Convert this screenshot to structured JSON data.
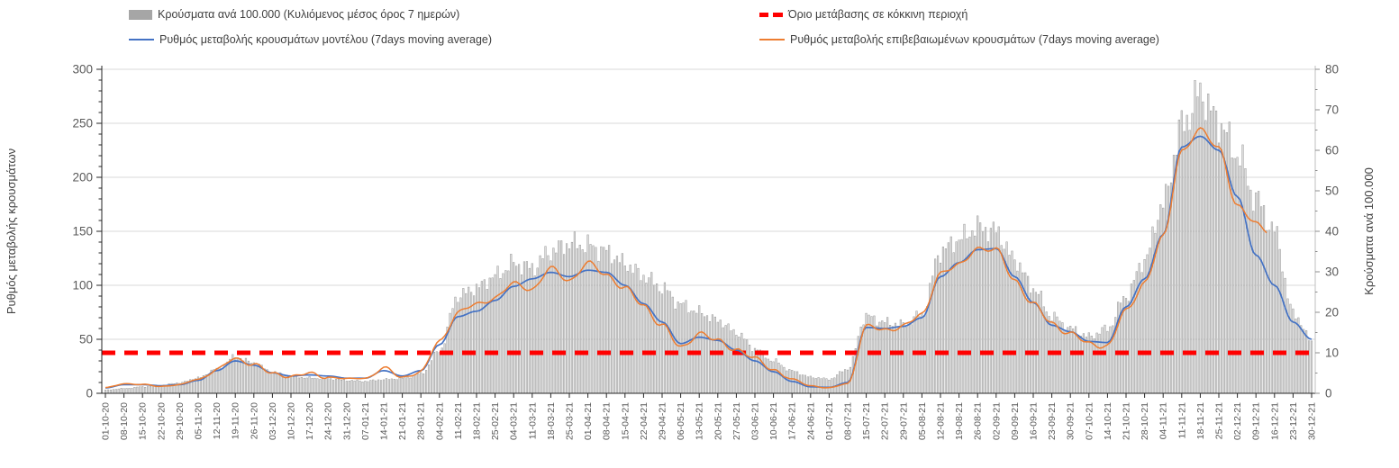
{
  "chart_data": {
    "type": "combo",
    "title": "",
    "x_tick_labels_rotated": true,
    "categories": [
      "01-10-20",
      "08-10-20",
      "15-10-20",
      "22-10-20",
      "29-10-20",
      "05-11-20",
      "12-11-20",
      "19-11-20",
      "26-11-20",
      "03-12-20",
      "10-12-20",
      "17-12-20",
      "24-12-20",
      "31-12-20",
      "07-01-21",
      "14-01-21",
      "21-01-21",
      "28-01-21",
      "04-02-21",
      "11-02-21",
      "18-02-21",
      "25-02-21",
      "04-03-21",
      "11-03-21",
      "18-03-21",
      "25-03-21",
      "01-04-21",
      "08-04-21",
      "15-04-21",
      "22-04-21",
      "29-04-21",
      "06-05-21",
      "13-05-21",
      "20-05-21",
      "27-05-21",
      "03-06-21",
      "10-06-21",
      "17-06-21",
      "24-06-21",
      "01-07-21",
      "08-07-21",
      "15-07-21",
      "22-07-21",
      "29-07-21",
      "05-08-21",
      "12-08-21",
      "19-08-21",
      "26-08-21",
      "02-09-21",
      "09-09-21",
      "16-09-21",
      "23-09-21",
      "30-09-21",
      "07-10-21",
      "14-10-21",
      "21-10-21",
      "28-10-21",
      "04-11-21",
      "11-11-21",
      "18-11-21",
      "25-11-21",
      "02-12-21",
      "09-12-21",
      "16-12-21",
      "23-12-21",
      "30-12-21"
    ],
    "left_axis": {
      "label": "Ρυθμός μεταβολής κρουσμάτων",
      "min": 0,
      "max": 300,
      "major_step": 50,
      "minor_step": 10
    },
    "right_axis": {
      "label": "Κρούσματα ανά 100.000",
      "min": 0,
      "max": 80,
      "major_step": 10,
      "minor_step": 5
    },
    "grid": {
      "horizontal_every_left_units": 50,
      "vertical": false
    },
    "legend_position": "top",
    "series": [
      {
        "name": "Κρούσματα ανά 100.000 (Κυλιόμενος μέσος όρος 7 ημερών)",
        "type": "bar",
        "axis": "right",
        "color": "#c9c9c9",
        "weekly_values": [
          0.8,
          1.2,
          1.6,
          2.0,
          2.6,
          3.8,
          6.0,
          9.0,
          7.5,
          5.2,
          4.2,
          3.8,
          3.6,
          3.2,
          3.0,
          3.4,
          3.7,
          4.8,
          10.5,
          24,
          26,
          29,
          32,
          31,
          35,
          37,
          36.5,
          35,
          32,
          29,
          26,
          22,
          20,
          18,
          15,
          11,
          8,
          5.5,
          4,
          3.5,
          6,
          19,
          17.5,
          17,
          19.5,
          35,
          38,
          41,
          40,
          33,
          26,
          19,
          16,
          14,
          16,
          24,
          33,
          47,
          66,
          74,
          67,
          59,
          48,
          40,
          20,
          13
        ]
      },
      {
        "name": "Ρυθμός μεταβολής κρουσμάτων μοντέλου (7days moving average)",
        "type": "line",
        "axis": "left",
        "color": "#4472c4",
        "weekly_values": [
          5,
          8,
          8,
          7,
          8,
          12,
          21,
          30,
          26,
          19,
          16,
          17,
          16,
          14,
          14,
          21,
          16,
          21,
          45,
          71,
          76,
          86,
          99,
          106,
          112,
          108,
          114,
          112,
          100,
          83,
          66,
          46,
          52,
          49,
          40,
          30,
          20,
          11,
          6,
          5.5,
          10,
          61,
          60,
          62,
          70,
          108,
          121,
          133,
          134,
          108,
          84,
          63,
          57,
          48,
          47,
          80,
          106,
          147,
          228,
          238,
          225,
          182,
          128,
          100,
          66,
          50
        ]
      },
      {
        "name": "Ρυθμός μεταβολής επιβεβαιωμένων κρουσμάτων (7days moving average)",
        "type": "line",
        "axis": "left",
        "color": "#ed7d31",
        "ends_at_week": 62.6,
        "weekly_values": [
          5,
          9,
          8,
          6.5,
          8,
          13,
          22,
          32,
          27,
          18,
          16,
          18,
          15,
          13.5,
          14,
          23,
          15,
          20,
          48,
          75,
          82,
          89,
          101,
          97,
          115,
          105,
          120,
          110,
          97,
          81,
          63,
          42,
          56,
          48,
          41,
          32,
          22,
          13,
          7,
          5,
          9,
          62,
          58,
          63,
          72,
          112,
          118,
          135,
          132,
          105,
          82,
          65,
          55,
          46,
          44,
          76,
          103,
          144,
          225,
          243,
          228,
          172,
          158,
          147,
          null,
          null
        ]
      },
      {
        "name": "Όριο μετάβασης σε κόκκινη περιοχή",
        "type": "threshold",
        "axis": "right",
        "color": "#ff0000",
        "value": 10,
        "left_axis_equivalent": 37.5
      }
    ]
  }
}
